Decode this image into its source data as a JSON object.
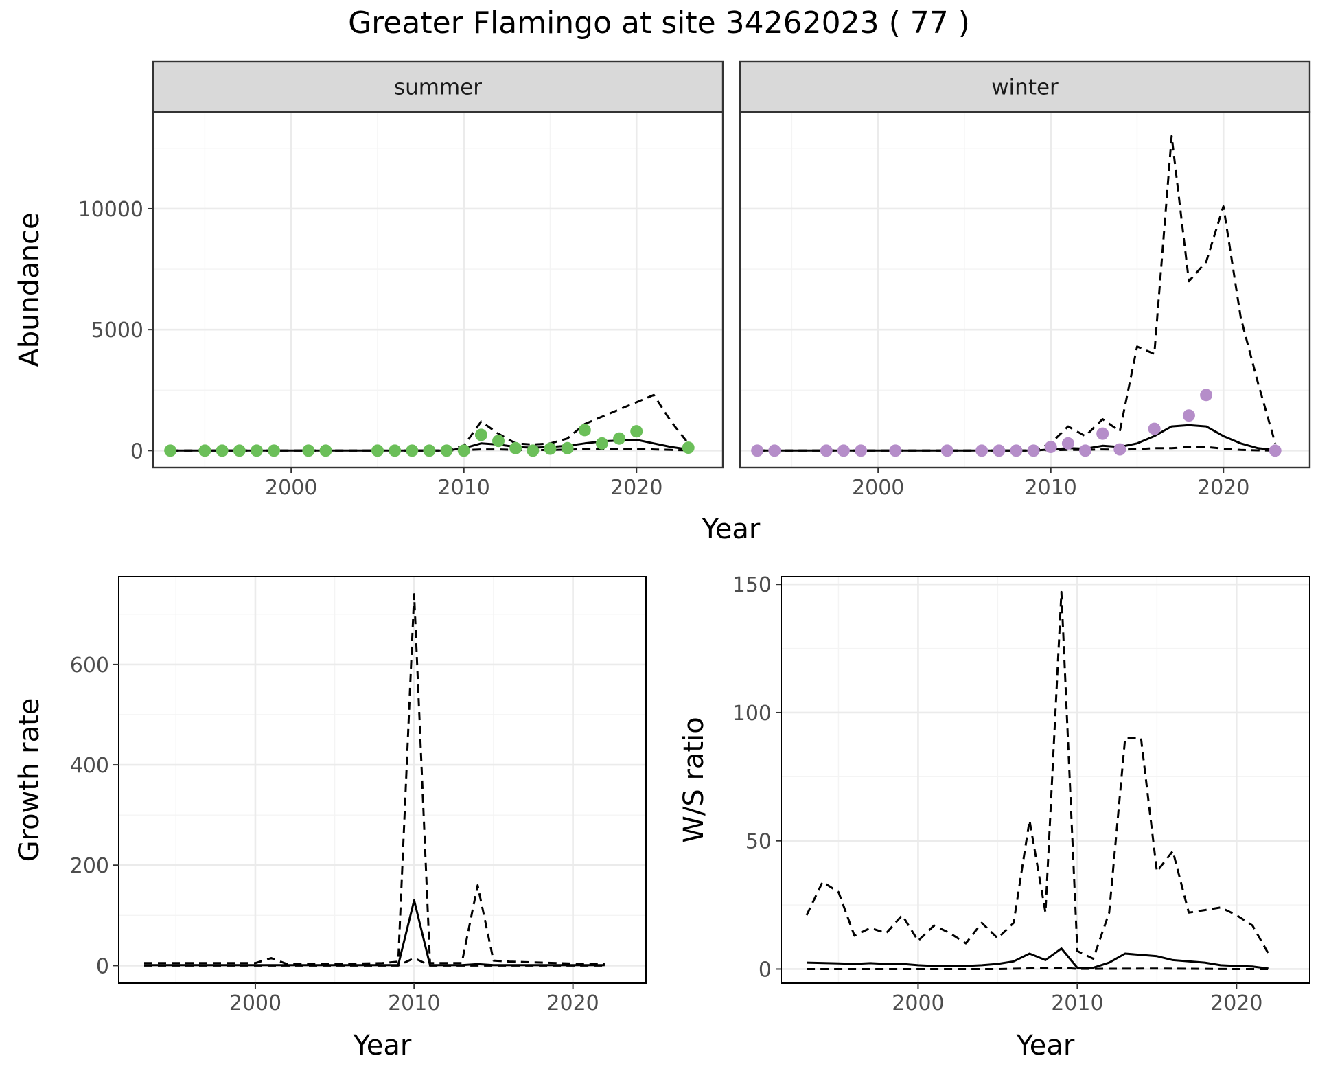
{
  "title": "Greater Flamingo at site 34262023 ( 77 )",
  "colors": {
    "summer_points": "#6bbf59",
    "winter_points": "#b58dc9",
    "line": "#000000",
    "strip_fill": "#d9d9d9",
    "grid_major": "#ebebeb",
    "grid_minor": "#f4f4f4"
  },
  "chart_data": [
    {
      "type": "scatter",
      "panel": "summer",
      "strip_label": "summer",
      "ylabel": "Abundance",
      "xlabel": "Year",
      "xlim": [
        1992,
        2025
      ],
      "ylim": [
        -700,
        14000
      ],
      "xticks": [
        2000,
        2010,
        2020
      ],
      "yticks": [
        0,
        5000,
        10000
      ],
      "points": [
        [
          1993,
          0
        ],
        [
          1995,
          0
        ],
        [
          1996,
          0
        ],
        [
          1997,
          0
        ],
        [
          1998,
          0
        ],
        [
          1999,
          0
        ],
        [
          2001,
          0
        ],
        [
          2002,
          0
        ],
        [
          2005,
          0
        ],
        [
          2006,
          0
        ],
        [
          2007,
          0
        ],
        [
          2008,
          0
        ],
        [
          2009,
          0
        ],
        [
          2010,
          0
        ],
        [
          2011,
          650
        ],
        [
          2012,
          400
        ],
        [
          2013,
          100
        ],
        [
          2014,
          0
        ],
        [
          2015,
          80
        ],
        [
          2016,
          100
        ],
        [
          2017,
          850
        ],
        [
          2018,
          300
        ],
        [
          2019,
          500
        ],
        [
          2020,
          800
        ],
        [
          2023,
          120
        ]
      ],
      "fit": {
        "x": [
          1993,
          1995,
          2000,
          2005,
          2009,
          2010,
          2011,
          2012,
          2013,
          2014,
          2015,
          2016,
          2017,
          2018,
          2019,
          2020,
          2021,
          2022,
          2023
        ],
        "y": [
          0,
          0,
          0,
          0,
          0,
          100,
          300,
          250,
          150,
          120,
          150,
          200,
          300,
          380,
          420,
          450,
          300,
          150,
          50
        ]
      },
      "upper": {
        "x": [
          1993,
          2000,
          2009,
          2010,
          2011,
          2012,
          2013,
          2014,
          2015,
          2016,
          2017,
          2018,
          2019,
          2020,
          2021,
          2022,
          2023
        ],
        "y": [
          0,
          0,
          0,
          200,
          1200,
          700,
          300,
          250,
          300,
          500,
          1100,
          1400,
          1700,
          2000,
          2300,
          1200,
          300
        ]
      },
      "lower": {
        "x": [
          1993,
          2000,
          2009,
          2010,
          2011,
          2012,
          2013,
          2014,
          2015,
          2016,
          2017,
          2018,
          2019,
          2020,
          2021,
          2022,
          2023
        ],
        "y": [
          0,
          0,
          0,
          20,
          50,
          50,
          30,
          20,
          30,
          40,
          60,
          70,
          80,
          80,
          50,
          30,
          10
        ]
      }
    },
    {
      "type": "scatter",
      "panel": "winter",
      "strip_label": "winter",
      "ylabel": "Abundance",
      "xlabel": "Year",
      "xlim": [
        1992,
        2025
      ],
      "ylim": [
        -700,
        14000
      ],
      "xticks": [
        2000,
        2010,
        2020
      ],
      "yticks": [
        0,
        5000,
        10000
      ],
      "points": [
        [
          1993,
          0
        ],
        [
          1994,
          0
        ],
        [
          1997,
          0
        ],
        [
          1998,
          0
        ],
        [
          1999,
          0
        ],
        [
          2001,
          0
        ],
        [
          2004,
          0
        ],
        [
          2006,
          0
        ],
        [
          2007,
          0
        ],
        [
          2008,
          0
        ],
        [
          2009,
          0
        ],
        [
          2010,
          150
        ],
        [
          2011,
          300
        ],
        [
          2012,
          0
        ],
        [
          2013,
          700
        ],
        [
          2014,
          50
        ],
        [
          2016,
          900
        ],
        [
          2018,
          1450
        ],
        [
          2019,
          2300
        ],
        [
          2023,
          0
        ]
      ],
      "fit": {
        "x": [
          1993,
          2000,
          2009,
          2010,
          2011,
          2012,
          2013,
          2014,
          2015,
          2016,
          2017,
          2018,
          2019,
          2020,
          2021,
          2022,
          2023
        ],
        "y": [
          0,
          0,
          0,
          50,
          100,
          80,
          200,
          150,
          300,
          600,
          1000,
          1050,
          1000,
          600,
          300,
          100,
          20
        ]
      },
      "upper": {
        "x": [
          1993,
          2000,
          2009,
          2010,
          2011,
          2012,
          2013,
          2014,
          2015,
          2016,
          2017,
          2018,
          2019,
          2020,
          2021,
          2022,
          2023
        ],
        "y": [
          0,
          0,
          0,
          300,
          1000,
          600,
          1300,
          800,
          4300,
          4000,
          13000,
          7000,
          7800,
          10100,
          5500,
          2800,
          300
        ]
      },
      "lower": {
        "x": [
          1993,
          2000,
          2009,
          2010,
          2011,
          2012,
          2013,
          2014,
          2015,
          2016,
          2017,
          2018,
          2019,
          2020,
          2021,
          2022,
          2023
        ],
        "y": [
          0,
          0,
          0,
          20,
          30,
          30,
          50,
          40,
          60,
          100,
          100,
          150,
          150,
          80,
          30,
          10,
          0
        ]
      }
    },
    {
      "type": "line",
      "panel": "growth",
      "ylabel": "Growth rate",
      "xlabel": "Year",
      "xlim": [
        1991.4,
        2024.6
      ],
      "ylim": [
        -35,
        775
      ],
      "xticks": [
        2000,
        2010,
        2020
      ],
      "yticks": [
        0,
        200,
        400,
        600
      ],
      "fit": {
        "x": [
          1993,
          2000,
          2005,
          2009,
          2010,
          2011,
          2012,
          2013,
          2014,
          2015,
          2016,
          2020,
          2022
        ],
        "y": [
          1,
          1,
          1,
          1,
          130,
          1,
          1,
          1,
          3,
          1,
          1,
          1,
          1
        ]
      },
      "upper": {
        "x": [
          1993,
          2000,
          2001,
          2002,
          2005,
          2008,
          2009,
          2010,
          2011,
          2012,
          2013,
          2014,
          2015,
          2016,
          2020,
          2022
        ],
        "y": [
          5,
          5,
          15,
          3,
          3,
          5,
          8,
          740,
          5,
          5,
          5,
          160,
          10,
          8,
          4,
          3
        ]
      },
      "lower": {
        "x": [
          1993,
          2000,
          2009,
          2010,
          2011,
          2020,
          2022
        ],
        "y": [
          0,
          0,
          0,
          15,
          0,
          0,
          0
        ]
      }
    },
    {
      "type": "line",
      "panel": "ratio",
      "ylabel": "W/S ratio",
      "xlabel": "Year",
      "xlim": [
        1991.4,
        2024.6
      ],
      "ylim": [
        -5.5,
        153
      ],
      "xticks": [
        2000,
        2010,
        2020
      ],
      "yticks": [
        0,
        50,
        100,
        150
      ],
      "fit": {
        "x": [
          1993,
          1995,
          1996,
          1997,
          1998,
          1999,
          2000,
          2001,
          2002,
          2003,
          2004,
          2005,
          2006,
          2007,
          2008,
          2009,
          2010,
          2011,
          2012,
          2013,
          2014,
          2015,
          2016,
          2017,
          2018,
          2019,
          2020,
          2021,
          2022
        ],
        "y": [
          2.5,
          2.2,
          2.0,
          2.3,
          2.0,
          2.0,
          1.5,
          1.2,
          1.2,
          1.2,
          1.5,
          2.0,
          3.0,
          6.0,
          3.5,
          8.0,
          0.5,
          0.5,
          2.5,
          6.0,
          5.5,
          5.0,
          3.5,
          3.0,
          2.5,
          1.5,
          1.2,
          1.0,
          0.2
        ]
      },
      "upper": {
        "x": [
          1993,
          1994,
          1995,
          1996,
          1997,
          1998,
          1999,
          2000,
          2001,
          2002,
          2003,
          2004,
          2005,
          2006,
          2007,
          2008,
          2009,
          2010,
          2011,
          2012,
          2013,
          2014,
          2015,
          2016,
          2017,
          2018,
          2019,
          2020,
          2021,
          2022
        ],
        "y": [
          21,
          34,
          30,
          13,
          16,
          14,
          21,
          11,
          17,
          14,
          10,
          18,
          12,
          18,
          58,
          22,
          147,
          7,
          4,
          22,
          90,
          90,
          38,
          46,
          22,
          23,
          24,
          21,
          17,
          6
        ]
      },
      "lower": {
        "x": [
          1993,
          2000,
          2005,
          2009,
          2010,
          2011,
          2015,
          2020,
          2022
        ],
        "y": [
          0,
          0,
          0,
          0.5,
          0.1,
          0.1,
          0.2,
          0,
          0
        ]
      }
    }
  ]
}
